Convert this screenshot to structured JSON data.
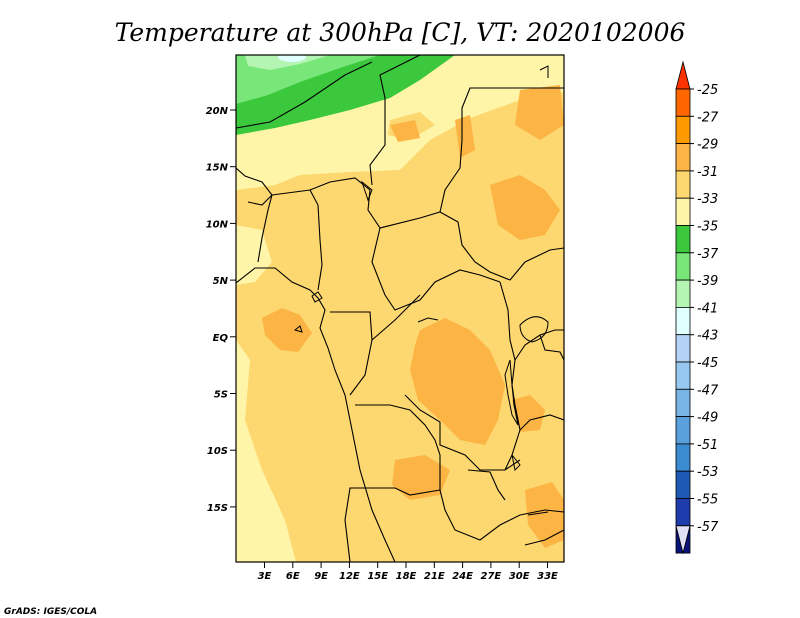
{
  "title": "Temperature at 300hPa [C], VT: 2020102006",
  "credit": "GrADS: IGES/COLA",
  "lat_ticks": [
    "20N",
    "15N",
    "10N",
    "5N",
    "EQ",
    "5S",
    "10S",
    "15S"
  ],
  "lon_ticks": [
    "3E",
    "6E",
    "9E",
    "12E",
    "15E",
    "18E",
    "21E",
    "24E",
    "27E",
    "30E",
    "33E"
  ],
  "colorbar": {
    "labels": [
      "-25",
      "-27",
      "-29",
      "-31",
      "-33",
      "-35",
      "-37",
      "-39",
      "-41",
      "-43",
      "-45",
      "-47",
      "-49",
      "-51",
      "-53",
      "-55",
      "-57"
    ],
    "colors": [
      "#ff3300",
      "#ff6600",
      "#ff9900",
      "#fcb444",
      "#fdd870",
      "#fff5a8",
      "#3cc83c",
      "#78e678",
      "#b4f5b4",
      "#e0ffff",
      "#b4d2f5",
      "#96c8f0",
      "#78b4e6",
      "#5aa0dc",
      "#3c8cd2",
      "#1e5ab4",
      "#1e3cab",
      "#0a1478",
      "#e1e1f5"
    ]
  },
  "map_fill_colors": {
    "base": "#fdd870",
    "warm": "#fcb444",
    "cool": "#fff5a8",
    "green_dark": "#3cc83c",
    "green_mid": "#78e678",
    "green_light": "#b4f5b4",
    "cyan": "#e0ffff"
  }
}
